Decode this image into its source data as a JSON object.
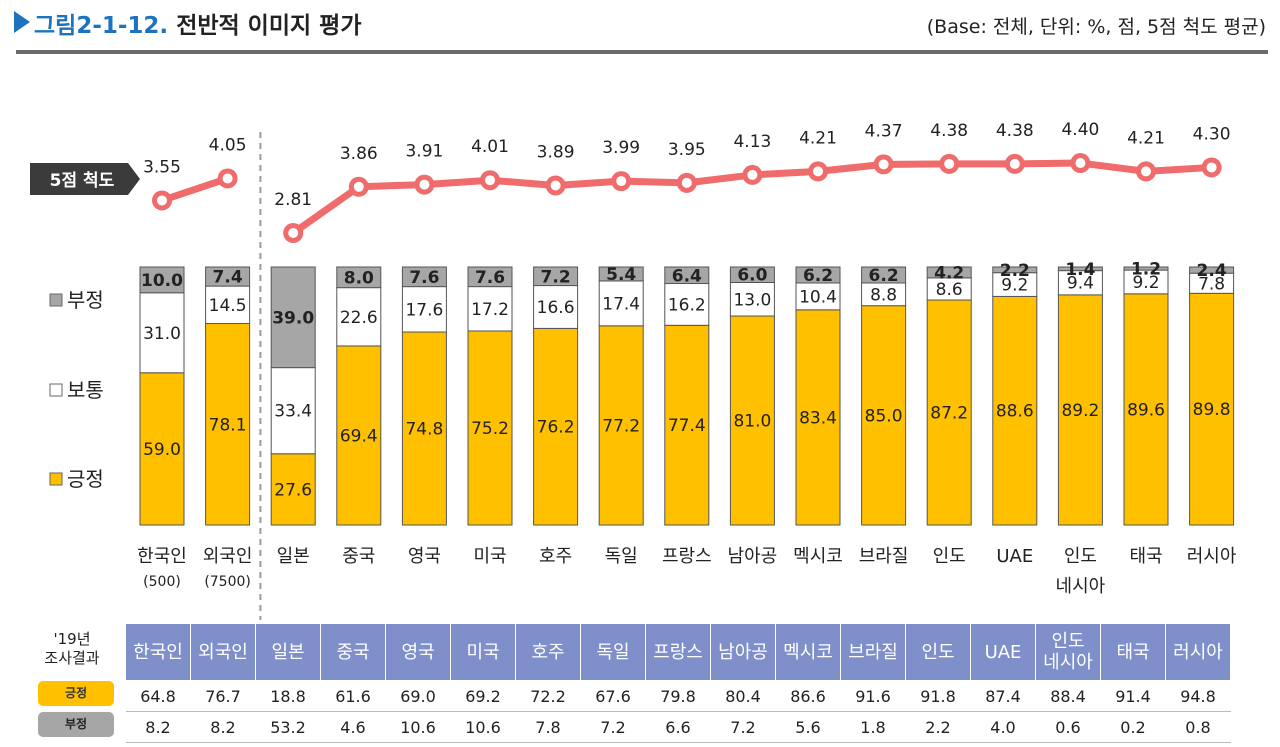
{
  "header": {
    "title_number": "그림2-1-12.",
    "title_text": "전반적 이미지 평가",
    "base_note": "(Base: 전체, 단위: %, 점, 5점 척도 평균)"
  },
  "chart_data": {
    "type": "bar",
    "stacked": true,
    "categories": [
      "한국인",
      "외국인",
      "일본",
      "중국",
      "영국",
      "미국",
      "호주",
      "독일",
      "프랑스",
      "남아공",
      "멕시코",
      "브라질",
      "인도",
      "UAE",
      "인도네시아",
      "태국",
      "러시아"
    ],
    "category_labels": [
      [
        "한국인",
        "(500)"
      ],
      [
        "외국인",
        "(7500)"
      ],
      [
        "일본"
      ],
      [
        "중국"
      ],
      [
        "영국"
      ],
      [
        "미국"
      ],
      [
        "호주"
      ],
      [
        "독일"
      ],
      [
        "프랑스"
      ],
      [
        "남아공"
      ],
      [
        "멕시코"
      ],
      [
        "브라질"
      ],
      [
        "인도"
      ],
      [
        "UAE"
      ],
      [
        "인도",
        "네시아"
      ],
      [
        "태국"
      ],
      [
        "러시아"
      ]
    ],
    "series": [
      {
        "name": "긍정",
        "color": "#ffc000",
        "values": [
          59.0,
          78.1,
          27.6,
          69.4,
          74.8,
          75.2,
          76.2,
          77.2,
          77.4,
          81.0,
          83.4,
          85.0,
          87.2,
          88.6,
          89.2,
          89.6,
          89.8
        ]
      },
      {
        "name": "보통",
        "color": "#ffffff",
        "values": [
          31.0,
          14.5,
          33.4,
          22.6,
          17.6,
          17.2,
          16.6,
          17.4,
          16.2,
          13.0,
          10.4,
          8.8,
          8.6,
          9.2,
          9.4,
          9.2,
          7.8
        ]
      },
      {
        "name": "부정",
        "color": "#a6a6a6",
        "values": [
          10.0,
          7.4,
          39.0,
          8.0,
          7.6,
          7.6,
          7.2,
          5.4,
          6.4,
          6.0,
          6.2,
          6.2,
          4.2,
          2.2,
          1.4,
          1.2,
          2.4
        ]
      }
    ],
    "line": {
      "name": "5점 척도",
      "color": "#f06b6b",
      "values": [
        3.55,
        4.05,
        2.81,
        3.86,
        3.91,
        4.01,
        3.89,
        3.99,
        3.95,
        4.13,
        4.21,
        4.37,
        4.38,
        4.38,
        4.4,
        4.21,
        4.3
      ],
      "segments": [
        [
          0,
          1
        ],
        [
          2,
          16
        ]
      ]
    },
    "legend": [
      "부정",
      "보통",
      "긍정"
    ],
    "legend_placement": "left",
    "ylim": [
      0,
      100
    ],
    "divider_after_index": 1
  },
  "previous_survey": {
    "title_line1": "'19년",
    "title_line2": "조사결과",
    "headers": [
      [
        "한국인"
      ],
      [
        "외국인"
      ],
      [
        "일본"
      ],
      [
        "중국"
      ],
      [
        "영국"
      ],
      [
        "미국"
      ],
      [
        "호주"
      ],
      [
        "독일"
      ],
      [
        "프랑스"
      ],
      [
        "남아공"
      ],
      [
        "멕시코"
      ],
      [
        "브라질"
      ],
      [
        "인도"
      ],
      [
        "UAE"
      ],
      [
        "인도",
        "네시아"
      ],
      [
        "태국"
      ],
      [
        "러시아"
      ]
    ],
    "rows": [
      {
        "label": "긍정",
        "values": [
          "64.8",
          "76.7",
          "18.8",
          "61.6",
          "69.0",
          "69.2",
          "72.2",
          "67.6",
          "79.8",
          "80.4",
          "86.6",
          "91.6",
          "91.8",
          "87.4",
          "88.4",
          "91.4",
          "94.8"
        ]
      },
      {
        "label": "부정",
        "values": [
          "8.2",
          "8.2",
          "53.2",
          "4.6",
          "10.6",
          "10.6",
          "7.8",
          "7.2",
          "6.6",
          "7.2",
          "5.6",
          "1.8",
          "2.2",
          "4.0",
          "0.6",
          "0.2",
          "0.8"
        ]
      }
    ]
  }
}
